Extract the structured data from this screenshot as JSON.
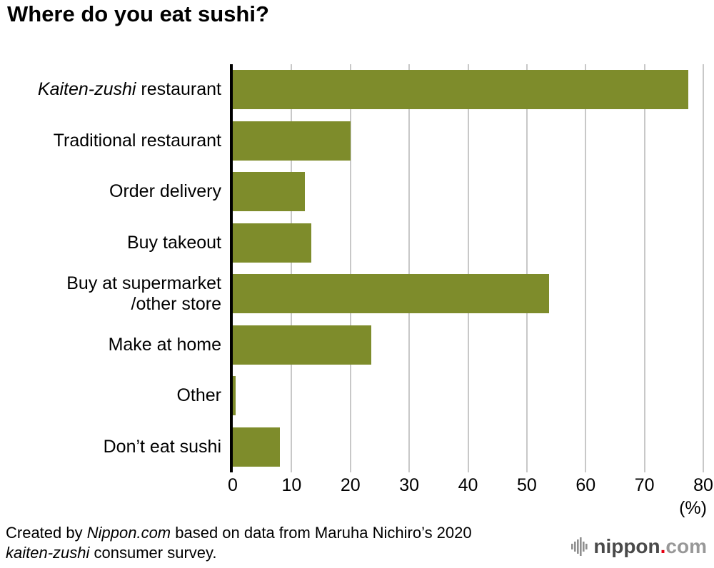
{
  "title": "Where do you eat sushi?",
  "chart_data": {
    "type": "bar",
    "orientation": "horizontal",
    "title": "Where do you eat sushi?",
    "bar_color": "#7e8c2b",
    "gridline_color": "#c8c8c8",
    "xlim": [
      0,
      80
    ],
    "x_ticks": [
      0,
      10,
      20,
      30,
      40,
      50,
      60,
      70,
      80
    ],
    "x_unit_label": "(%)",
    "grid": true,
    "categories": [
      {
        "plain": "Kaiten-zushi restaurant",
        "parts": [
          {
            "text": "Kaiten-zushi",
            "italic": true
          },
          {
            "text": " restaurant"
          }
        ]
      },
      {
        "plain": "Traditional restaurant",
        "parts": [
          {
            "text": "Traditional restaurant"
          }
        ]
      },
      {
        "plain": "Order delivery",
        "parts": [
          {
            "text": "Order delivery"
          }
        ]
      },
      {
        "plain": "Buy takeout",
        "parts": [
          {
            "text": "Buy takeout"
          }
        ]
      },
      {
        "plain": "Buy at supermarket /other store",
        "parts": [
          {
            "text": "Buy at supermarket"
          },
          {
            "br": true
          },
          {
            "text": "/other store"
          }
        ]
      },
      {
        "plain": "Make at home",
        "parts": [
          {
            "text": "Make at home"
          }
        ]
      },
      {
        "plain": "Other",
        "parts": [
          {
            "text": "Other"
          }
        ]
      },
      {
        "plain": "Don’t eat sushi",
        "parts": [
          {
            "text": "Don’t eat sushi"
          }
        ]
      }
    ],
    "values": [
      77.5,
      20,
      12.3,
      13.3,
      53.8,
      23.5,
      0.5,
      8
    ]
  },
  "footer": {
    "credit_parts": [
      {
        "text": "Created by "
      },
      {
        "text": "Nippon.com",
        "italic": true
      },
      {
        "text": " based on data from Maruha Nichiro’s 2020"
      },
      {
        "br": true
      },
      {
        "text": "kaiten-zushi",
        "italic": true
      },
      {
        "text": " consumer survey."
      }
    ],
    "logo": {
      "nippon": "nippon",
      "dot": ".",
      "com": "com"
    }
  }
}
